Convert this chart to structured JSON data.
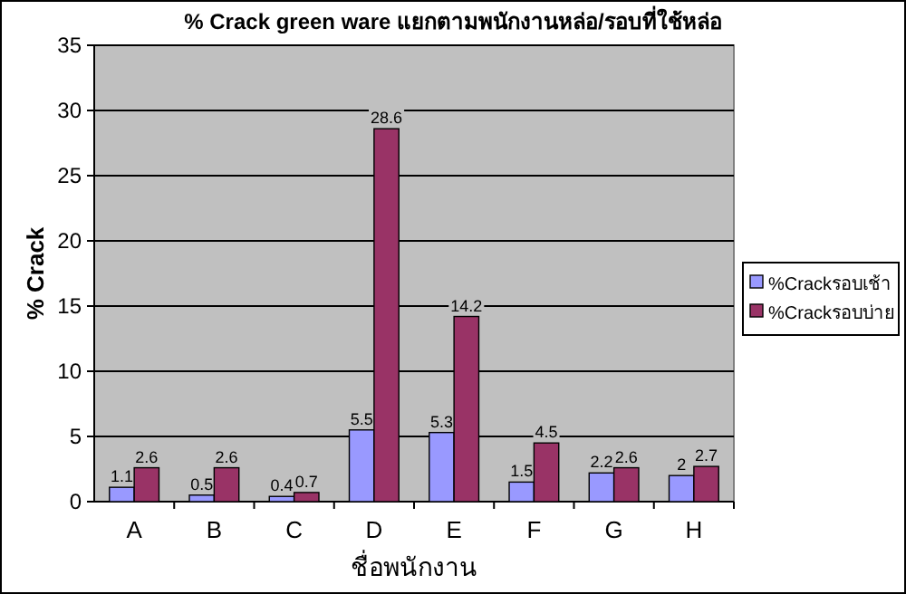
{
  "chart_data": {
    "type": "bar",
    "title": "% Crack green ware แยกตามพนักงานหล่อ/รอบที่ใช้หล่อ",
    "xlabel": "ชื่อพนักงาน",
    "ylabel": "% Crack",
    "categories": [
      "A",
      "B",
      "C",
      "D",
      "E",
      "F",
      "G",
      "H"
    ],
    "series": [
      {
        "name": "%Crackรอบเช้า",
        "color": "#9999ff",
        "values": [
          1.1,
          0.5,
          0.4,
          5.5,
          5.3,
          1.5,
          2.2,
          2
        ]
      },
      {
        "name": "%Crackรอบบ่าย",
        "color": "#993366",
        "values": [
          2.6,
          2.6,
          0.7,
          28.6,
          14.2,
          4.5,
          2.6,
          2.7
        ]
      }
    ],
    "ylim": [
      0,
      35
    ],
    "yticks": [
      0,
      5,
      10,
      15,
      20,
      25,
      30,
      35
    ],
    "grid": "y",
    "data_labels": true,
    "legend": "right"
  }
}
